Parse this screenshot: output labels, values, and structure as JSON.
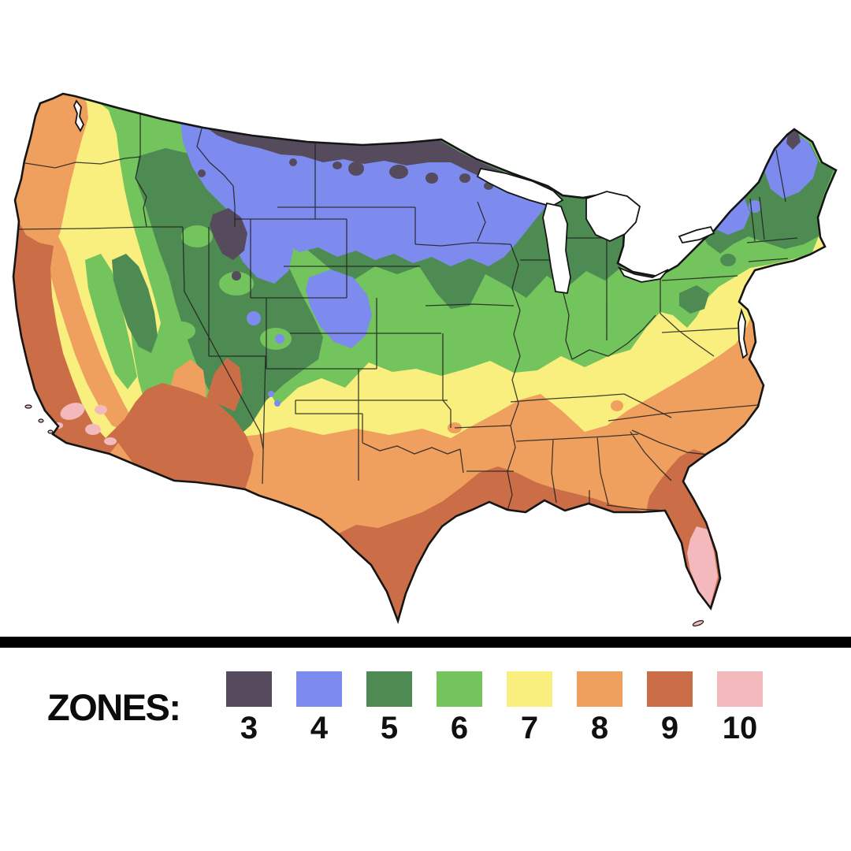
{
  "page": {
    "background": "#ffffff"
  },
  "map": {
    "outline_color": "#151515",
    "state_border_color": "#202020",
    "water_color": "#ffffff"
  },
  "divider": {
    "color": "#000000"
  },
  "legend": {
    "label": "ZONES:",
    "zones": [
      {
        "number": "3",
        "color": "#564b5d"
      },
      {
        "number": "4",
        "color": "#7d8bee"
      },
      {
        "number": "5",
        "color": "#4e8b52"
      },
      {
        "number": "6",
        "color": "#73c45d"
      },
      {
        "number": "7",
        "color": "#f9ef7e"
      },
      {
        "number": "8",
        "color": "#efa05e"
      },
      {
        "number": "9",
        "color": "#cb6e48"
      },
      {
        "number": "10",
        "color": "#f3b9bc"
      }
    ]
  }
}
